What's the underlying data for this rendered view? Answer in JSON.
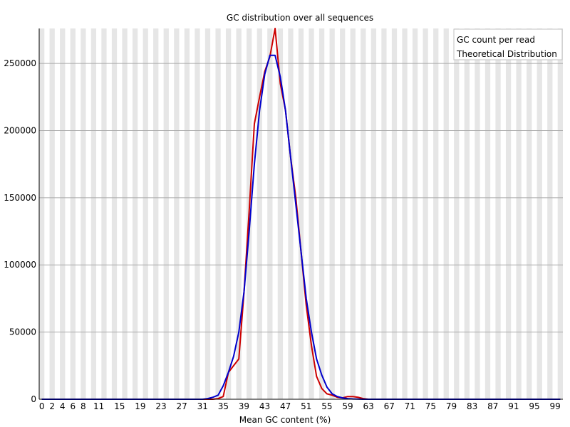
{
  "chart_data": {
    "type": "line",
    "title": "GC distribution over all sequences",
    "xlabel": "Mean GC content (%)",
    "ylabel": "",
    "x": [
      0,
      1,
      2,
      3,
      4,
      5,
      6,
      7,
      8,
      9,
      10,
      11,
      12,
      13,
      14,
      15,
      16,
      17,
      18,
      19,
      20,
      21,
      22,
      23,
      24,
      25,
      26,
      27,
      28,
      29,
      30,
      31,
      32,
      33,
      34,
      35,
      36,
      37,
      38,
      39,
      40,
      41,
      42,
      43,
      44,
      45,
      46,
      47,
      48,
      49,
      50,
      51,
      52,
      53,
      54,
      55,
      56,
      57,
      58,
      59,
      60,
      61,
      62,
      63,
      64,
      65,
      66,
      67,
      68,
      69,
      70,
      71,
      72,
      73,
      74,
      75,
      76,
      77,
      78,
      79,
      80,
      81,
      82,
      83,
      84,
      85,
      86,
      87,
      88,
      89,
      90,
      91,
      92,
      93,
      94,
      95,
      96,
      97,
      98,
      99,
      100
    ],
    "xlim": [
      0,
      100
    ],
    "ylim": [
      0,
      276000
    ],
    "x_ticks": [
      "0",
      "2",
      "4",
      "6",
      "8",
      "11",
      "15",
      "19",
      "23",
      "27",
      "31",
      "35",
      "39",
      "43",
      "47",
      "51",
      "55",
      "59",
      "63",
      "67",
      "71",
      "75",
      "79",
      "83",
      "87",
      "91",
      "95",
      "99"
    ],
    "y_ticks": [
      "0",
      "50000",
      "100000",
      "150000",
      "200000",
      "250000"
    ],
    "y_tick_values": [
      0,
      50000,
      100000,
      150000,
      200000,
      250000
    ],
    "series": [
      {
        "name": "GC count per read",
        "color": "#cc0000",
        "values": [
          0,
          0,
          0,
          0,
          0,
          0,
          0,
          0,
          0,
          0,
          0,
          0,
          0,
          0,
          0,
          0,
          0,
          0,
          0,
          0,
          0,
          0,
          0,
          0,
          0,
          0,
          0,
          0,
          0,
          0,
          0,
          0,
          0,
          0,
          500,
          2000,
          20000,
          25000,
          30000,
          80000,
          140000,
          205000,
          225000,
          244000,
          255000,
          276000,
          235000,
          215000,
          180000,
          150000,
          110000,
          70000,
          40000,
          17000,
          8000,
          4000,
          3000,
          1500,
          1000,
          2000,
          2000,
          1500,
          500,
          0,
          0,
          0,
          0,
          0,
          0,
          0,
          0,
          0,
          0,
          0,
          0,
          0,
          0,
          0,
          0,
          0,
          0,
          0,
          0,
          0,
          0,
          0,
          0,
          0,
          0,
          0,
          0,
          0,
          0,
          0,
          0,
          0,
          0,
          0,
          0,
          0,
          0
        ]
      },
      {
        "name": "Theoretical Distribution",
        "color": "#0000cc",
        "values": [
          0,
          0,
          0,
          0,
          0,
          0,
          0,
          0,
          0,
          0,
          0,
          0,
          0,
          0,
          0,
          0,
          0,
          0,
          0,
          0,
          0,
          0,
          0,
          0,
          0,
          0,
          0,
          0,
          0,
          0,
          0,
          0,
          500,
          1500,
          3000,
          10000,
          20000,
          32000,
          50000,
          80000,
          125000,
          175000,
          215000,
          242000,
          256000,
          256000,
          240000,
          215000,
          180000,
          145000,
          110000,
          75000,
          50000,
          30000,
          18000,
          9000,
          4000,
          2000,
          1000,
          500,
          200,
          100,
          0,
          0,
          0,
          0,
          0,
          0,
          0,
          0,
          0,
          0,
          0,
          0,
          0,
          0,
          0,
          0,
          0,
          0,
          0,
          0,
          0,
          0,
          0,
          0,
          0,
          0,
          0,
          0,
          0,
          0,
          0,
          0,
          0,
          0,
          0,
          0,
          0,
          0,
          0
        ]
      }
    ],
    "legend": "top-right",
    "grid": true
  }
}
